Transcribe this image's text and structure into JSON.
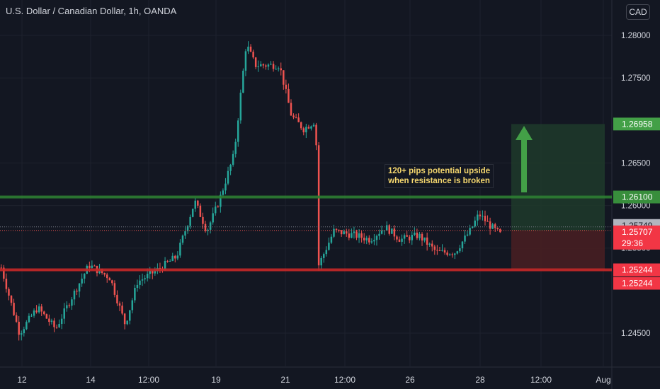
{
  "chart": {
    "title": "U.S. Dollar / Canadian Dollar, 1h, OANDA",
    "currency": "CAD",
    "annotation_lines": [
      "120+ pips potential upside",
      "when resistance is broken"
    ]
  },
  "colors": {
    "background": "#131722",
    "up": "#26a69a",
    "down": "#ef5350",
    "grid": "#1e222d",
    "resistance": "#2e7d32",
    "support": "#c62828",
    "target_zone": "#1f3a2a",
    "stop_zone": "#4a1f22",
    "target_label": "#43a047",
    "resistance_label": "#388e3c",
    "last_price_label": "#b2b5be",
    "current_price_label": "#f23645",
    "support_label": "#f23645"
  },
  "chart_data": {
    "type": "candlestick",
    "ylim": [
      1.2423,
      1.2815
    ],
    "y_ticks": [
      "1.28000",
      "1.27500",
      "1.26500",
      "1.26000",
      "1.25500",
      "1.24500"
    ],
    "x_ticks": [
      "12",
      "14",
      "12:00",
      "19",
      "21",
      "12:00",
      "26",
      "28",
      "12:00",
      "Aug"
    ],
    "price_path": [
      [
        0.0,
        1.2527
      ],
      [
        0.03,
        1.245
      ],
      [
        0.06,
        1.248
      ],
      [
        0.09,
        1.2455
      ],
      [
        0.115,
        1.249
      ],
      [
        0.145,
        1.253
      ],
      [
        0.18,
        1.2515
      ],
      [
        0.205,
        1.246
      ],
      [
        0.225,
        1.251
      ],
      [
        0.26,
        1.2525
      ],
      [
        0.29,
        1.254
      ],
      [
        0.32,
        1.2605
      ],
      [
        0.34,
        1.257
      ],
      [
        0.36,
        1.2605
      ],
      [
        0.385,
        1.266
      ],
      [
        0.405,
        1.279
      ],
      [
        0.42,
        1.2765
      ],
      [
        0.46,
        1.2765
      ],
      [
        0.48,
        1.2705
      ],
      [
        0.5,
        1.269
      ],
      [
        0.52,
        1.27
      ],
      [
        0.525,
        1.253
      ],
      [
        0.55,
        1.257
      ],
      [
        0.585,
        1.2565
      ],
      [
        0.61,
        1.256
      ],
      [
        0.635,
        1.2575
      ],
      [
        0.66,
        1.256
      ],
      [
        0.69,
        1.2565
      ],
      [
        0.72,
        1.2545
      ],
      [
        0.75,
        1.2545
      ],
      [
        0.775,
        1.257
      ],
      [
        0.79,
        1.259
      ],
      [
        0.81,
        1.2575
      ],
      [
        0.825,
        1.2566
      ]
    ],
    "levels": {
      "resistance": 1.261,
      "last_close": 1.25749,
      "current": 1.25707,
      "support": 1.25244,
      "target": 1.26958
    },
    "price_labels": {
      "target": "1.26958",
      "resistance": "1.26100",
      "last_close": "1.25749",
      "current": "1.25707",
      "countdown": "29:36",
      "support_a": "1.25244",
      "support_b": "1.25244"
    }
  }
}
